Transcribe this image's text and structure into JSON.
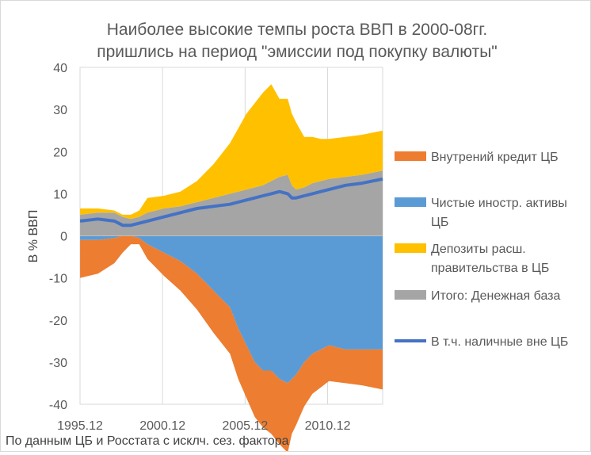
{
  "chart_data": {
    "type": "area",
    "title_lines": [
      "Наиболее высокие темпы роста ВВП в 2000-08гг.",
      "пришлись на период \"эмиссии под покупку валюты\""
    ],
    "ylabel": "В % ВВП",
    "xlabel": "",
    "footnote": "По данным ЦБ и Росстата с исклч. сез. фактора",
    "ylim": [
      -40,
      40
    ],
    "yticks": [
      "40",
      "30",
      "20",
      "10",
      "0",
      "-10",
      "-20",
      "-30",
      "-40"
    ],
    "xlim": [
      1995.917,
      2014.25
    ],
    "xticks": [
      {
        "label": "1995.12",
        "value": 1995.917
      },
      {
        "label": "2000.12",
        "value": 2000.917
      },
      {
        "label": "2005.12",
        "value": 2005.917
      },
      {
        "label": "2010.12",
        "value": 2010.917
      }
    ],
    "grid": "vertical",
    "legend_position": "right",
    "legend": [
      {
        "label_lines": [
          "Внутрений кредит ЦБ"
        ],
        "color": "#ED7D31",
        "kind": "area"
      },
      {
        "label_lines": [
          "Чистые иностр. активы",
          "ЦБ"
        ],
        "color": "#5B9BD5",
        "kind": "area"
      },
      {
        "label_lines": [
          "Депозиты расш.",
          "правительства в ЦБ"
        ],
        "color": "#FFC000",
        "kind": "area"
      },
      {
        "label_lines": [
          "Итого: Денежная база"
        ],
        "color": "#A5A5A5",
        "kind": "area"
      },
      {
        "label_lines": [
          "В т.ч. наличные вне ЦБ"
        ],
        "color": "#4472C4",
        "kind": "line"
      }
    ],
    "x": [
      1995.92,
      1997.0,
      1998.0,
      1998.5,
      1999.0,
      1999.5,
      2000.0,
      2001.0,
      2002.0,
      2003.0,
      2004.0,
      2005.0,
      2005.5,
      2006.0,
      2006.5,
      2007.0,
      2007.5,
      2008.0,
      2008.5,
      2008.75,
      2009.0,
      2009.5,
      2010.0,
      2010.5,
      2011.0,
      2012.0,
      2013.0,
      2014.25
    ],
    "series": [
      {
        "name": "Итого: Денежная база",
        "values": [
          5.0,
          5.5,
          5.5,
          4.5,
          4.0,
          4.5,
          5.5,
          6.5,
          7.0,
          8.0,
          9.0,
          10.0,
          10.5,
          11.0,
          11.5,
          12.0,
          13.0,
          14.0,
          14.5,
          12.0,
          11.0,
          11.5,
          12.5,
          13.0,
          13.5,
          14.0,
          14.5,
          15.5
        ]
      },
      {
        "name": "В т.ч. наличные вне ЦБ",
        "values": [
          3.5,
          4.0,
          3.5,
          2.5,
          2.5,
          3.0,
          3.5,
          4.5,
          5.5,
          6.5,
          7.0,
          7.5,
          8.0,
          8.5,
          9.0,
          9.5,
          10.0,
          10.5,
          10.0,
          9.0,
          9.0,
          9.5,
          10.0,
          10.5,
          11.0,
          12.0,
          12.5,
          13.5
        ]
      },
      {
        "name": "Депозиты расш. правительства в ЦБ",
        "values": [
          1.5,
          1.0,
          0.5,
          0.5,
          1.0,
          1.5,
          3.5,
          3.0,
          3.5,
          5.0,
          8.0,
          12.0,
          15.0,
          18.0,
          20.0,
          22.0,
          23.0,
          18.5,
          18.0,
          17.0,
          16.0,
          12.0,
          11.0,
          10.0,
          9.5,
          9.5,
          9.5,
          9.5
        ]
      },
      {
        "name": "Чистые иностр. активы ЦБ",
        "values": [
          -1.0,
          -1.0,
          -0.5,
          0.0,
          0.0,
          -0.5,
          -2.0,
          -4.0,
          -6.0,
          -9.0,
          -13.0,
          -17.0,
          -22.0,
          -26.0,
          -30.0,
          -32.0,
          -32.0,
          -34.0,
          -35.0,
          -34.0,
          -33.0,
          -30.0,
          -28.0,
          -27.0,
          -26.0,
          -27.0,
          -27.0,
          -27.0
        ]
      },
      {
        "name": "Внутрений кредит ЦБ",
        "values": [
          -9.0,
          -8.0,
          -6.0,
          -4.0,
          -2.0,
          -1.5,
          -3.5,
          -5.5,
          -7.0,
          -8.5,
          -10.0,
          -11.0,
          -12.0,
          -12.5,
          -13.0,
          -13.5,
          -15.0,
          -15.5,
          -16.5,
          -13.0,
          -12.0,
          -10.5,
          -9.5,
          -9.0,
          -8.5,
          -8.0,
          -8.5,
          -9.5
        ]
      }
    ]
  }
}
